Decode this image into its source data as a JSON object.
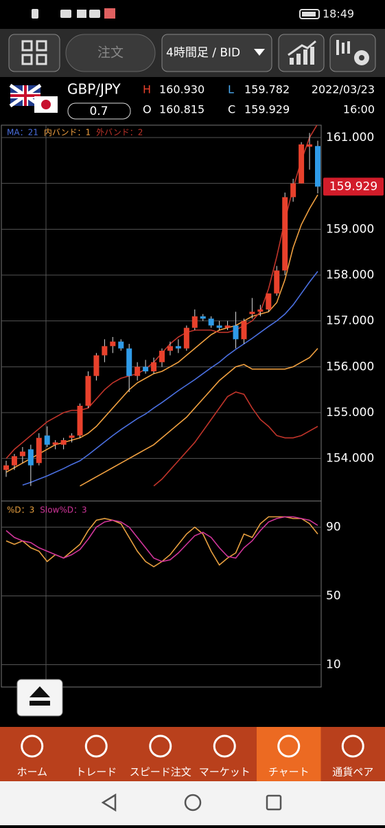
{
  "status_bar": {
    "time": "18:49"
  },
  "toolbar": {
    "order_button": "注文",
    "timeframe": "4時間足 / BID"
  },
  "quote": {
    "pair": "GBP/JPY",
    "spread": "0.7",
    "high_label": "H",
    "high": "160.930",
    "open_label": "O",
    "open": "160.815",
    "low_label": "L",
    "low": "159.782",
    "close_label": "C",
    "close": "159.929",
    "date": "2022/03/23",
    "time": "16:00"
  },
  "chart_data": [
    {
      "type": "candlestick",
      "ylim": [
        153.08,
        161.27
      ],
      "yticks": [
        {
          "value": 154,
          "label": "154.000"
        },
        {
          "value": 155,
          "label": "155.000"
        },
        {
          "value": 156,
          "label": "156.000"
        },
        {
          "value": 157,
          "label": "157.000"
        },
        {
          "value": 158,
          "label": "158.000"
        },
        {
          "value": 159,
          "label": "159.000"
        },
        {
          "value": 160,
          "label": "160.000"
        },
        {
          "value": 161,
          "label": "161.000"
        }
      ],
      "grid": true,
      "up_color": "#e8412c",
      "down_color": "#2f9be8",
      "current_price": {
        "value": 159.929,
        "label": "159.929"
      },
      "ohlc": [
        [
          153.75,
          153.95,
          153.6,
          153.85
        ],
        [
          153.85,
          154.1,
          153.75,
          154.05
        ],
        [
          154.05,
          154.25,
          153.9,
          154.15
        ],
        [
          154.2,
          154.3,
          153.4,
          153.85
        ],
        [
          153.9,
          154.55,
          153.85,
          154.45
        ],
        [
          154.5,
          154.7,
          154.25,
          154.3
        ],
        [
          154.3,
          154.4,
          154.2,
          154.35
        ],
        [
          154.3,
          154.45,
          154.2,
          154.4
        ],
        [
          154.45,
          154.55,
          154.35,
          154.5
        ],
        [
          154.5,
          155.2,
          154.45,
          155.15
        ],
        [
          155.15,
          155.9,
          155.1,
          155.8
        ],
        [
          155.8,
          156.3,
          155.7,
          156.25
        ],
        [
          156.25,
          156.6,
          156.1,
          156.45
        ],
        [
          156.45,
          156.65,
          156.3,
          156.55
        ],
        [
          156.55,
          156.6,
          156.35,
          156.4
        ],
        [
          156.4,
          156.5,
          155.45,
          155.8
        ],
        [
          155.8,
          156.1,
          155.7,
          156.0
        ],
        [
          156.0,
          156.15,
          155.85,
          155.9
        ],
        [
          155.9,
          156.2,
          155.85,
          156.1
        ],
        [
          156.1,
          156.4,
          156.0,
          156.35
        ],
        [
          156.35,
          156.55,
          156.25,
          156.45
        ],
        [
          156.45,
          156.6,
          156.3,
          156.4
        ],
        [
          156.4,
          156.9,
          156.35,
          156.85
        ],
        [
          156.85,
          157.25,
          156.8,
          157.1
        ],
        [
          157.1,
          157.15,
          157.0,
          157.05
        ],
        [
          157.05,
          157.1,
          156.85,
          156.9
        ],
        [
          156.9,
          157.0,
          156.8,
          156.85
        ],
        [
          156.85,
          157.0,
          156.8,
          156.9
        ],
        [
          156.9,
          157.2,
          156.4,
          156.6
        ],
        [
          156.6,
          157.05,
          156.5,
          157.0
        ],
        [
          157.15,
          157.5,
          157.05,
          157.2
        ],
        [
          157.2,
          157.35,
          157.1,
          157.25
        ],
        [
          157.25,
          157.6,
          157.2,
          157.6
        ],
        [
          157.6,
          158.2,
          157.55,
          158.1
        ],
        [
          158.1,
          159.8,
          158.0,
          159.7
        ],
        [
          159.7,
          160.1,
          159.6,
          160.0
        ],
        [
          160.0,
          160.9,
          160.0,
          160.85
        ],
        [
          160.8,
          161.1,
          160.3,
          160.85
        ],
        [
          160.815,
          160.93,
          159.782,
          159.929
        ]
      ],
      "series": [
        {
          "name": "MA：21",
          "color": "#4a6fe0",
          "values": [
            null,
            null,
            153.42,
            153.48,
            153.55,
            153.62,
            153.7,
            153.78,
            153.87,
            153.95,
            154.08,
            154.22,
            154.36,
            154.5,
            154.63,
            154.75,
            154.87,
            154.97,
            155.1,
            155.22,
            155.35,
            155.48,
            155.6,
            155.72,
            155.85,
            155.98,
            156.1,
            156.25,
            156.38,
            156.5,
            156.62,
            156.75,
            156.88,
            157.0,
            157.15,
            157.35,
            157.6,
            157.85,
            158.08
          ]
        },
        {
          "name": "内バンド：1",
          "color": "#f0a040",
          "upper": [
            153.7,
            153.8,
            153.9,
            154.0,
            154.1,
            154.2,
            154.3,
            154.35,
            154.4,
            154.45,
            154.55,
            154.7,
            154.9,
            155.1,
            155.3,
            155.5,
            155.65,
            155.75,
            155.85,
            155.9,
            156.0,
            156.1,
            156.25,
            156.4,
            156.55,
            156.7,
            156.8,
            156.85,
            156.9,
            157.0,
            157.1,
            157.15,
            157.2,
            157.4,
            157.9,
            158.6,
            159.1,
            159.45,
            159.75
          ],
          "lower": [
            null,
            null,
            null,
            null,
            null,
            null,
            null,
            null,
            null,
            153.4,
            153.5,
            153.6,
            153.7,
            153.8,
            153.9,
            154.0,
            154.1,
            154.2,
            154.3,
            154.45,
            154.6,
            154.75,
            154.9,
            155.1,
            155.3,
            155.5,
            155.7,
            155.85,
            156.0,
            156.05,
            155.95,
            155.95,
            155.95,
            155.95,
            155.95,
            156.0,
            156.1,
            156.2,
            156.4
          ]
        },
        {
          "name": "外バンド：2",
          "color": "#c0342a",
          "upper": [
            154.0,
            154.2,
            154.35,
            154.5,
            154.65,
            154.8,
            154.9,
            155.0,
            155.05,
            155.05,
            155.1,
            155.3,
            155.5,
            155.65,
            155.75,
            155.8,
            155.85,
            155.95,
            156.1,
            156.3,
            156.5,
            156.65,
            156.75,
            156.8,
            156.8,
            156.8,
            156.75,
            156.75,
            156.8,
            156.9,
            157.0,
            157.2,
            157.7,
            158.4,
            159.2,
            159.9,
            160.5,
            161.0,
            161.3
          ],
          "lower": [
            null,
            null,
            null,
            null,
            null,
            null,
            null,
            null,
            null,
            null,
            null,
            null,
            null,
            null,
            null,
            null,
            null,
            null,
            153.4,
            153.55,
            153.75,
            153.95,
            154.15,
            154.35,
            154.6,
            154.85,
            155.1,
            155.35,
            155.45,
            155.4,
            155.1,
            154.85,
            154.7,
            154.5,
            154.45,
            154.45,
            154.5,
            154.6,
            154.7
          ]
        }
      ]
    },
    {
      "type": "line",
      "ylim": [
        -3,
        105
      ],
      "yticks": [
        10,
        50,
        90
      ],
      "grid": true,
      "series": [
        {
          "name": "%D：3",
          "color": "#e8a040",
          "values": [
            82,
            80,
            82,
            78,
            76,
            70,
            74,
            72,
            76,
            80,
            88,
            94,
            95,
            94,
            92,
            84,
            76,
            70,
            67,
            70,
            74,
            80,
            86,
            90,
            86,
            76,
            68,
            72,
            75,
            86,
            84,
            92,
            96,
            96,
            96,
            95,
            95,
            92,
            86
          ]
        },
        {
          "name": "Slow%D：3",
          "color": "#d0359a",
          "values": [
            88,
            84,
            82,
            81,
            78,
            76,
            74,
            72,
            74,
            77,
            83,
            90,
            93,
            94,
            93,
            90,
            84,
            78,
            72,
            70,
            71,
            75,
            80,
            85,
            87,
            84,
            78,
            73,
            72,
            78,
            82,
            88,
            93,
            95,
            96,
            96,
            95,
            94,
            91
          ]
        }
      ]
    }
  ],
  "nav": {
    "active": 4,
    "items": [
      "ホーム",
      "トレード",
      "スピード注文",
      "マーケット",
      "チャート",
      "通貨ペア"
    ]
  }
}
